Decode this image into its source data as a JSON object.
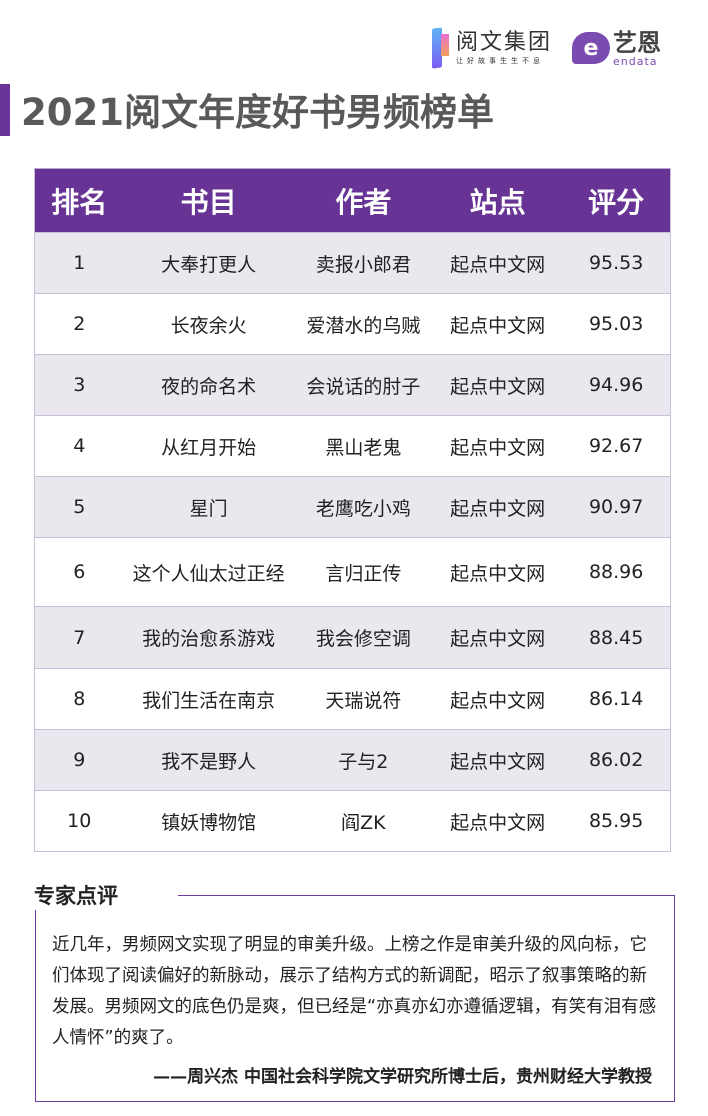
{
  "logos": {
    "yuewen_name": "阅文集团",
    "yuewen_slogan": "让好故事生生不息",
    "endata_name": "艺恩",
    "endata_sub": "endata",
    "endata_icon_letter": "e"
  },
  "title": "2021阅文年度好书男频榜单",
  "table": {
    "headers": [
      "排名",
      "书目",
      "作者",
      "站点",
      "评分"
    ],
    "rows": [
      [
        "1",
        "大奉打更人",
        "卖报小郎君",
        "起点中文网",
        "95.53"
      ],
      [
        "2",
        "长夜余火",
        "爱潜水的乌贼",
        "起点中文网",
        "95.03"
      ],
      [
        "3",
        "夜的命名术",
        "会说话的肘子",
        "起点中文网",
        "94.96"
      ],
      [
        "4",
        "从红月开始",
        "黑山老鬼",
        "起点中文网",
        "92.67"
      ],
      [
        "5",
        "星门",
        "老鹰吃小鸡",
        "起点中文网",
        "90.97"
      ],
      [
        "6",
        "这个人仙太过正经",
        "言归正传",
        "起点中文网",
        "88.96"
      ],
      [
        "7",
        "我的治愈系游戏",
        "我会修空调",
        "起点中文网",
        "88.45"
      ],
      [
        "8",
        "我们生活在南京",
        "天瑞说符",
        "起点中文网",
        "86.14"
      ],
      [
        "9",
        "我不是野人",
        "子与2",
        "起点中文网",
        "86.02"
      ],
      [
        "10",
        "镇妖博物馆",
        "阎ZK",
        "起点中文网",
        "85.95"
      ]
    ]
  },
  "review": {
    "label": "专家点评",
    "text": "近几年，男频网文实现了明显的审美升级。上榜之作是审美升级的风向标，它们体现了阅读偏好的新脉动，展示了结构方式的新调配，昭示了叙事策略的新发展。男频网文的底色仍是爽，但已经是“亦真亦幻亦遵循逻辑，有笑有泪有感人情怀”的爽了。",
    "signature": "——周兴杰 中国社会科学院文学研究所博士后，贵州财经大学教授"
  },
  "colors": {
    "accent": "#673495",
    "row_shade": "#eae7ef",
    "title": "#595959"
  }
}
